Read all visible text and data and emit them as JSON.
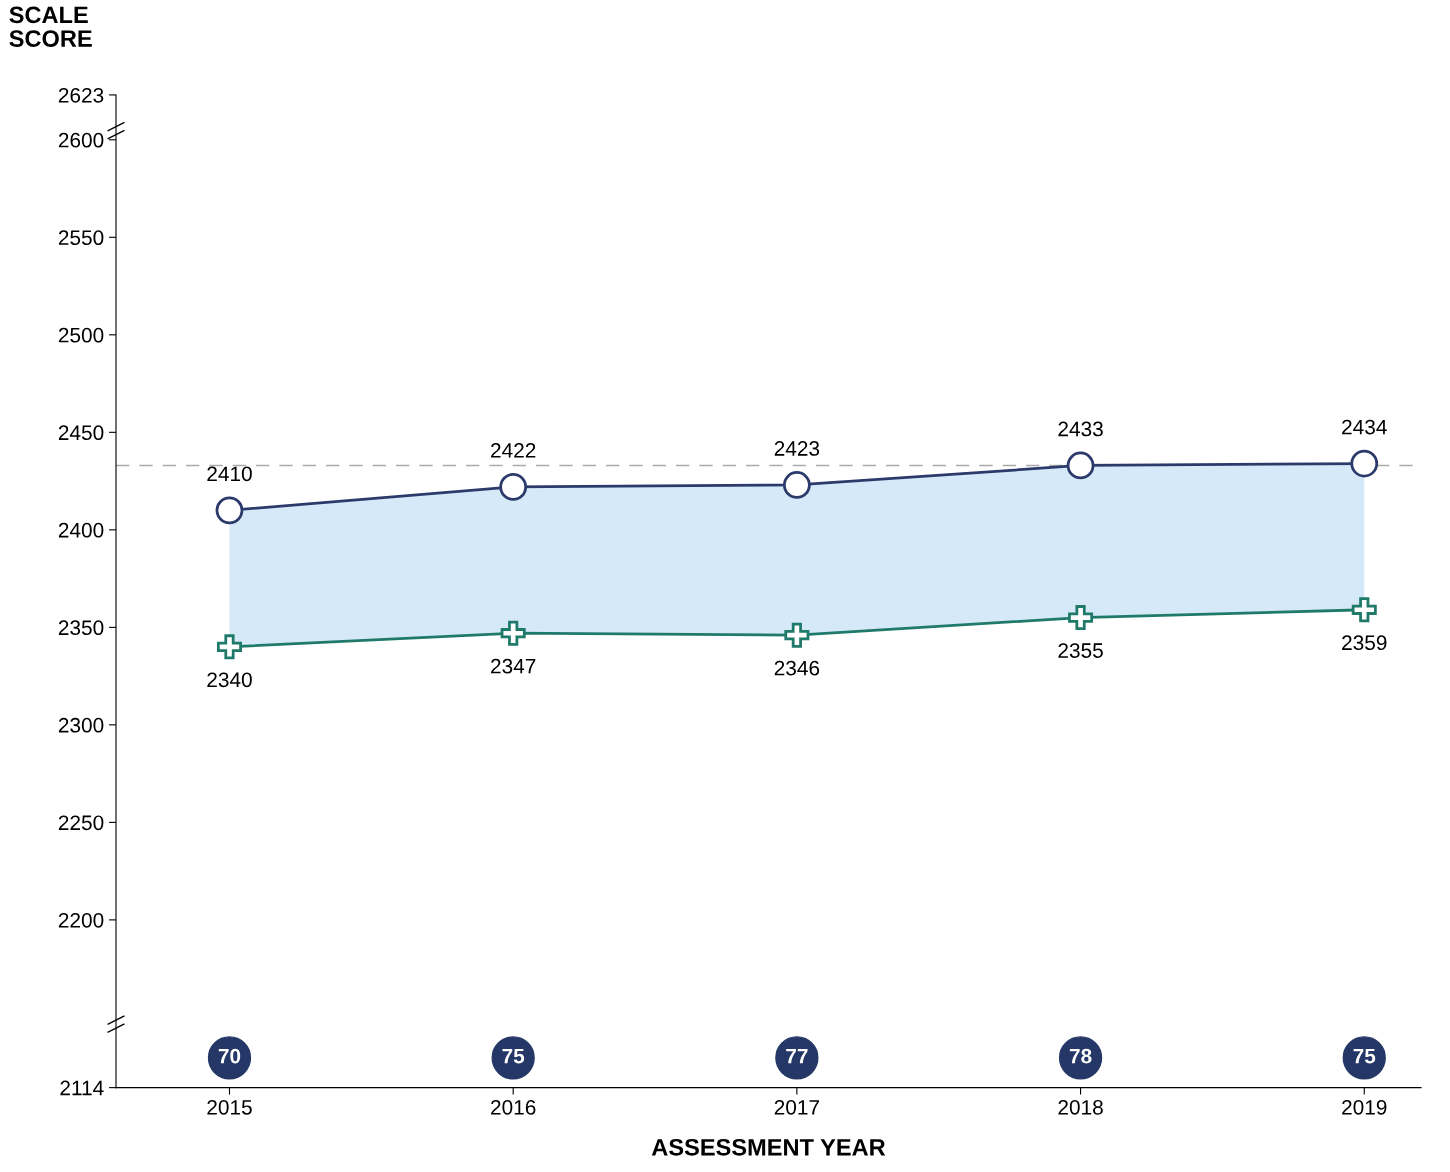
{
  "chart_data": {
    "type": "line",
    "ylabel": "SCALE\nSCORE",
    "xlabel": "ASSESSMENT YEAR",
    "categories": [
      "2015",
      "2016",
      "2017",
      "2018",
      "2019"
    ],
    "series": [
      {
        "name": null,
        "color": "#2b3a6b",
        "marker": "circle",
        "values": [
          2410,
          2422,
          2423,
          2433,
          2434
        ],
        "lower": [
          2340,
          2347,
          2346,
          2355,
          2359
        ],
        "upper": [
          2410,
          2422,
          2423,
          2433,
          2434
        ]
      },
      {
        "name": null,
        "color": "#1f7a6a",
        "marker": "cross",
        "values": [
          2340,
          2347,
          2346,
          2355,
          2359
        ]
      }
    ],
    "data_labels": true,
    "ylim": [
      2114,
      2623
    ],
    "yticks": [
      2114,
      2200,
      2250,
      2300,
      2350,
      2400,
      2450,
      2500,
      2550,
      2600,
      2623
    ],
    "ref_lines": [
      {
        "axis": "y",
        "value": 2433,
        "label": null,
        "color": "#aaaaaa",
        "line_style": "dashed"
      }
    ],
    "annotations": [
      {
        "text": "70",
        "x": "2015"
      },
      {
        "text": "75",
        "x": "2016"
      },
      {
        "text": "77",
        "x": "2017"
      },
      {
        "text": "78",
        "x": "2018"
      },
      {
        "text": "75",
        "x": "2019"
      }
    ]
  }
}
